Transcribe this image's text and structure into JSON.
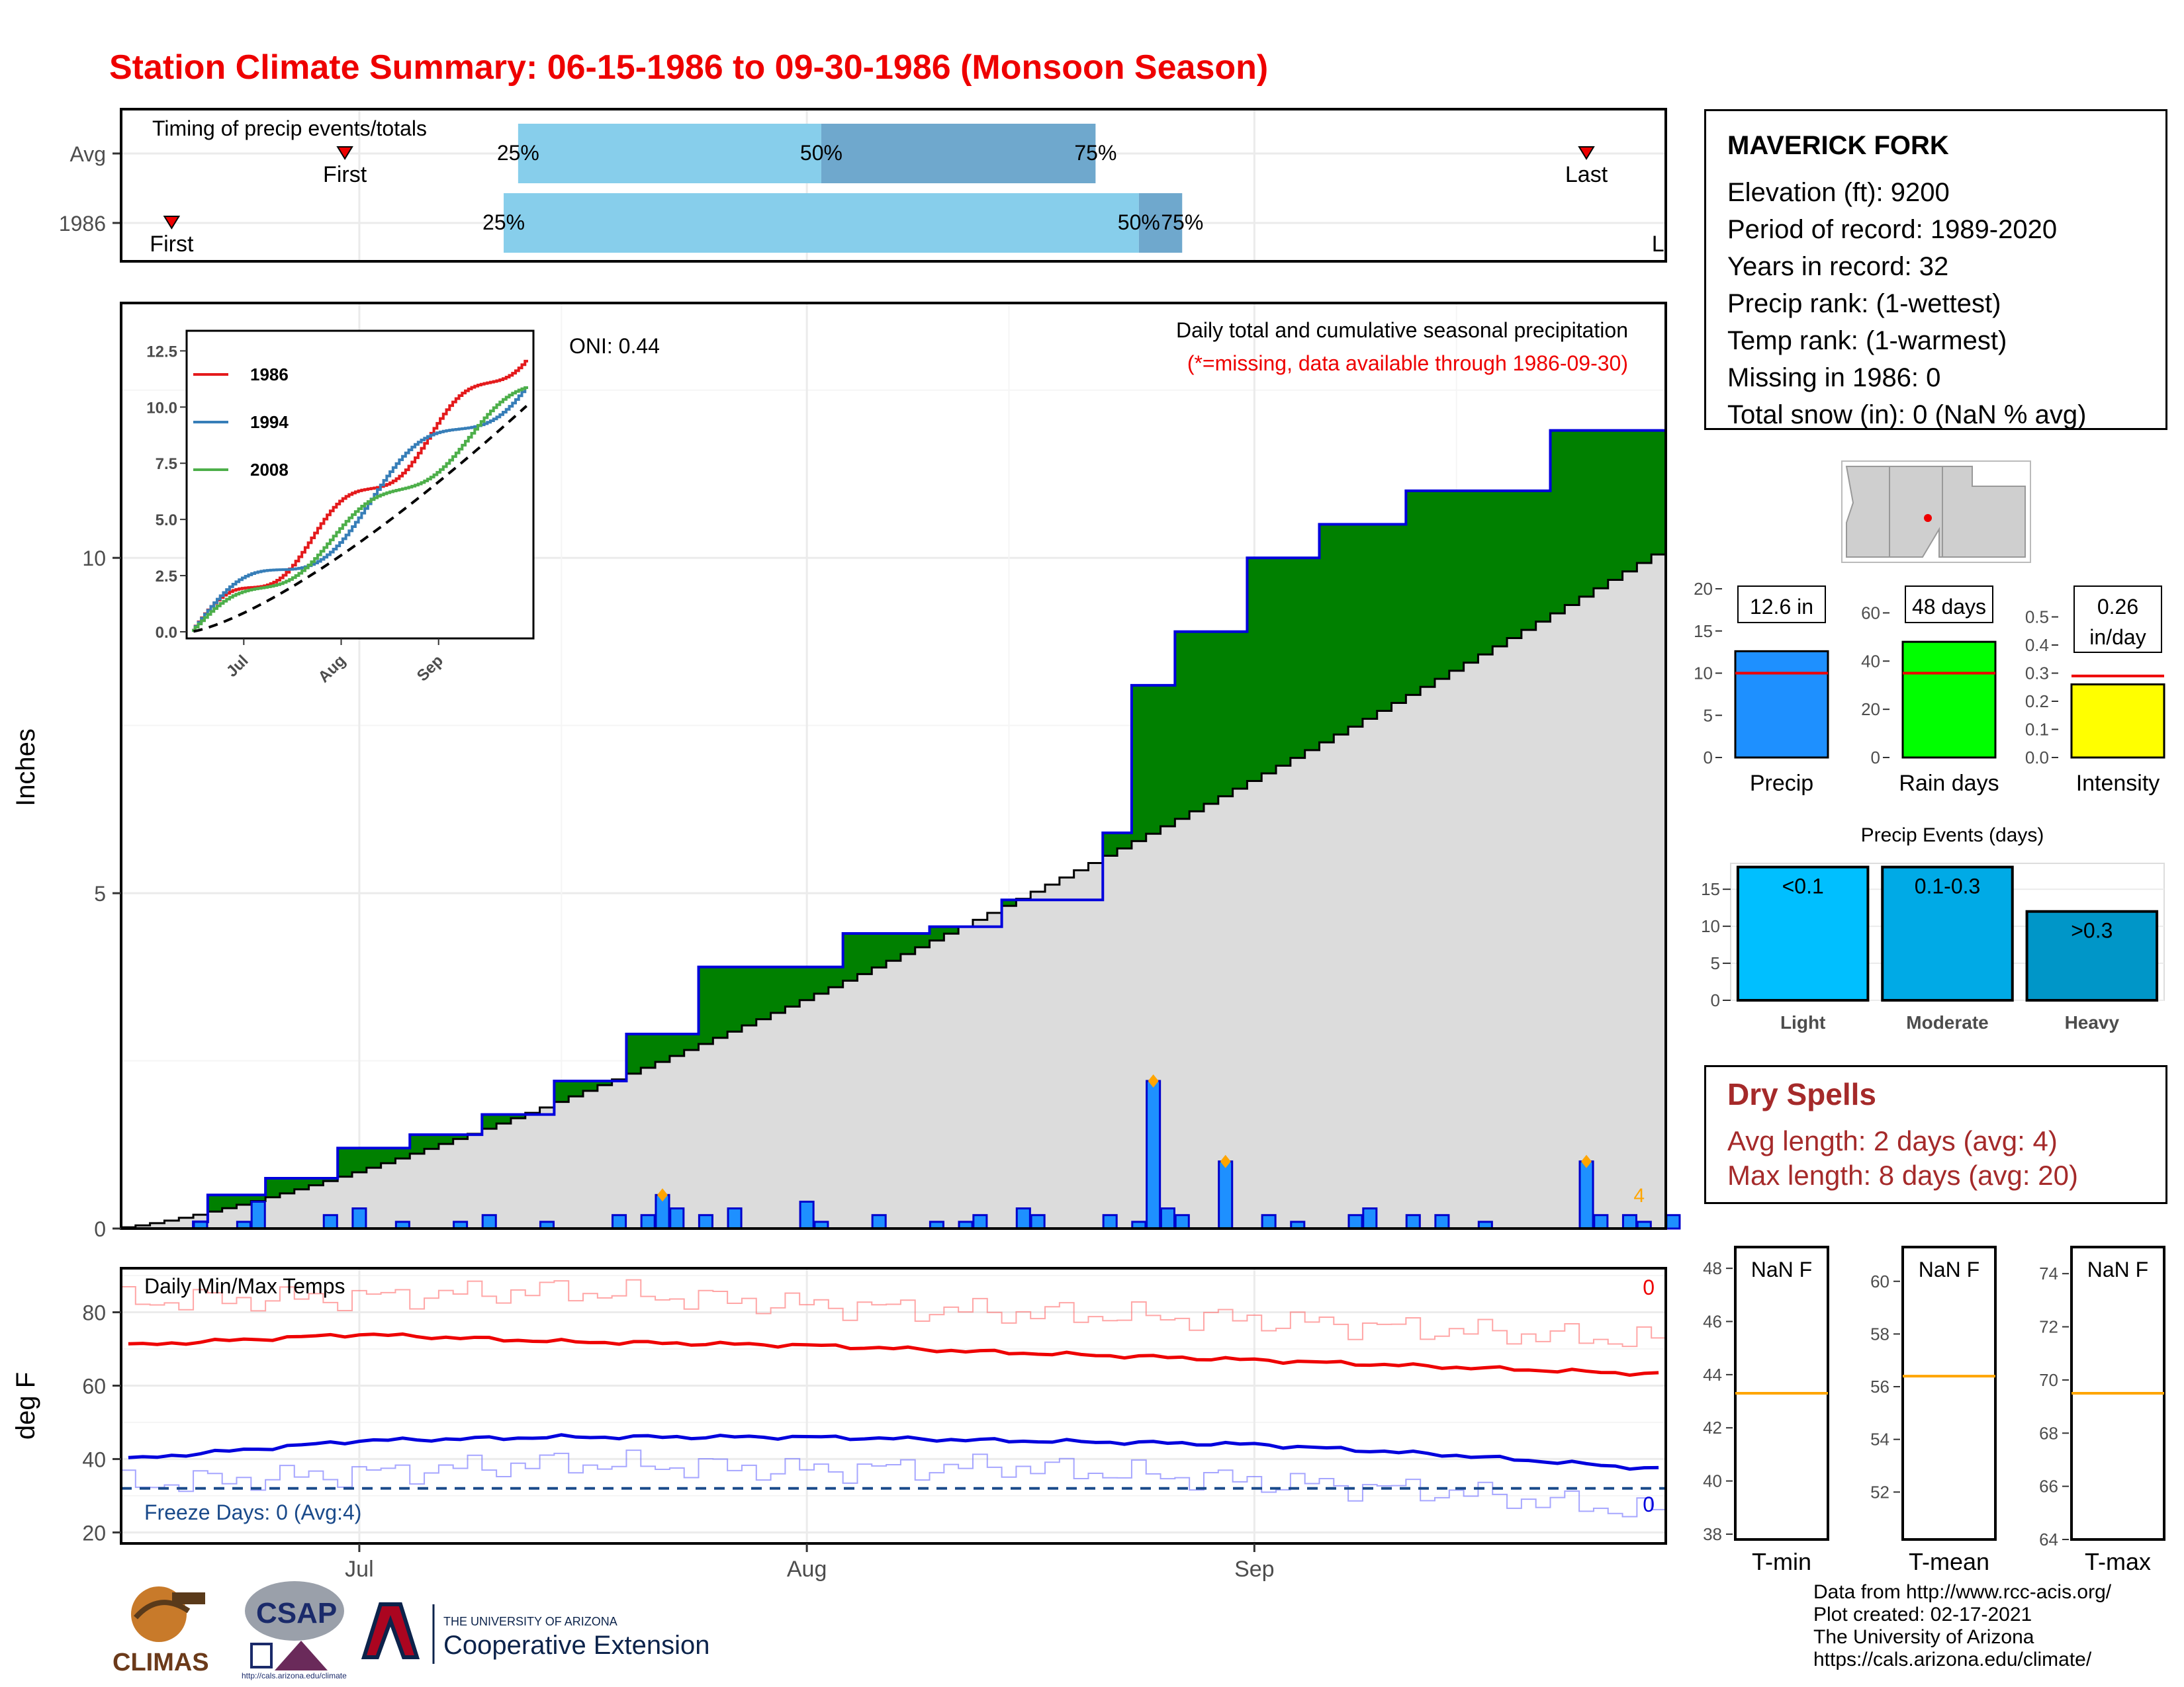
{
  "title": "Station Climate Summary: 06-15-1986 to 09-30-1986 (Monsoon Season)",
  "colors": {
    "obs": "#1e90ff",
    "avg_fill": "#dcdcdc",
    "above": "#008000",
    "below": "#8b5a00",
    "max": "#ee0000",
    "min": "#0000dd",
    "title": "#ee0000",
    "dry": "#a52a2a",
    "q_light": "#87ceeb",
    "q_dark": "#6fa8cd"
  },
  "timing": {
    "label": "Timing of precip events/totals",
    "rows": [
      {
        "name": "Avg",
        "first_day": "06-30",
        "last_day": "09-24",
        "first_label": "First",
        "last_label": "Last",
        "q25_day": "07-12",
        "q50_day": "08-02",
        "q75_day": "08-21",
        "q25": "25%",
        "q50": "50%",
        "q75": "75%"
      },
      {
        "name": "1986",
        "first_day": "06-18",
        "last_day": "09-30",
        "first_label": "First",
        "last_label": "Last",
        "q25_day": "07-11",
        "q50_day": "08-24",
        "q75_day": "08-27",
        "q25": "25%",
        "q50": "50%",
        "q75": "75%"
      }
    ]
  },
  "main": {
    "ylabel": "Inches",
    "oni": "ONI: 0.44",
    "legend1": "Daily total and cumulative seasonal precipitation",
    "legend2": "(*=missing, data available through 1986-09-30)",
    "count_label": "4",
    "xticks": [
      "Jul",
      "Aug",
      "Sep"
    ],
    "yticks": [
      0,
      5,
      10
    ]
  },
  "chart_data": [
    {
      "type": "area",
      "title": "Daily total and cumulative seasonal precipitation",
      "ylabel": "Inches",
      "xlim": [
        "1986-06-15",
        "1986-09-30"
      ],
      "ylim": [
        0,
        13.8
      ],
      "cumulative_avg_end": 10.05,
      "cumulative_1986_end": 12.6,
      "cumulative_1986_points": [
        [
          "1986-06-20",
          0.1
        ],
        [
          "1986-06-21",
          0.5
        ],
        [
          "1986-06-25",
          0.75
        ],
        [
          "1986-06-30",
          1.2
        ],
        [
          "1986-07-05",
          1.4
        ],
        [
          "1986-07-10",
          1.7
        ],
        [
          "1986-07-15",
          2.2
        ],
        [
          "1986-07-20",
          2.9
        ],
        [
          "1986-07-25",
          3.9
        ],
        [
          "1986-07-31",
          3.9
        ],
        [
          "1986-08-04",
          4.4
        ],
        [
          "1986-08-10",
          4.5
        ],
        [
          "1986-08-15",
          4.9
        ],
        [
          "1986-08-22",
          5.9
        ],
        [
          "1986-08-24",
          8.1
        ],
        [
          "1986-08-27",
          8.9
        ],
        [
          "1986-09-01",
          10.0
        ],
        [
          "1986-09-06",
          10.5
        ],
        [
          "1986-09-12",
          11.0
        ],
        [
          "1986-09-21",
          11.0
        ],
        [
          "1986-09-22",
          11.9
        ],
        [
          "1986-09-30",
          12.6
        ]
      ],
      "daily_precip": [
        [
          "1986-06-20",
          0.1
        ],
        [
          "1986-06-23",
          0.1
        ],
        [
          "1986-06-24",
          0.4
        ],
        [
          "1986-06-29",
          0.2
        ],
        [
          "1986-07-01",
          0.3
        ],
        [
          "1986-07-04",
          0.1
        ],
        [
          "1986-07-08",
          0.1
        ],
        [
          "1986-07-10",
          0.2
        ],
        [
          "1986-07-14",
          0.1
        ],
        [
          "1986-07-19",
          0.2
        ],
        [
          "1986-07-21",
          0.2
        ],
        [
          "1986-07-22",
          0.5
        ],
        [
          "1986-07-23",
          0.3
        ],
        [
          "1986-07-25",
          0.2
        ],
        [
          "1986-07-27",
          0.3
        ],
        [
          "1986-08-01",
          0.4
        ],
        [
          "1986-08-02",
          0.1
        ],
        [
          "1986-08-06",
          0.2
        ],
        [
          "1986-08-10",
          0.1
        ],
        [
          "1986-08-12",
          0.1
        ],
        [
          "1986-08-13",
          0.2
        ],
        [
          "1986-08-16",
          0.3
        ],
        [
          "1986-08-17",
          0.2
        ],
        [
          "1986-08-22",
          0.2
        ],
        [
          "1986-08-24",
          0.1
        ],
        [
          "1986-08-25",
          2.2
        ],
        [
          "1986-08-26",
          0.3
        ],
        [
          "1986-08-27",
          0.2
        ],
        [
          "1986-08-30",
          1.0
        ],
        [
          "1986-09-02",
          0.2
        ],
        [
          "1986-09-04",
          0.1
        ],
        [
          "1986-09-08",
          0.2
        ],
        [
          "1986-09-09",
          0.3
        ],
        [
          "1986-09-12",
          0.2
        ],
        [
          "1986-09-14",
          0.2
        ],
        [
          "1986-09-17",
          0.1
        ],
        [
          "1986-09-24",
          1.0
        ],
        [
          "1986-09-25",
          0.2
        ],
        [
          "1986-09-27",
          0.2
        ],
        [
          "1986-09-28",
          0.1
        ],
        [
          "1986-09-30",
          0.2
        ]
      ]
    },
    {
      "type": "line",
      "title": "Daily Min/Max Temps",
      "ylabel": "deg F",
      "ylim": [
        17,
        92
      ],
      "freeze_line": 32,
      "series": [
        {
          "name": "max_1986",
          "x": [
            "06-15",
            "07-01",
            "07-15",
            "08-01",
            "08-15",
            "09-01",
            "09-15",
            "09-30"
          ],
          "values": [
            83,
            84,
            86,
            82,
            80,
            78,
            75,
            72
          ]
        },
        {
          "name": "max_avg",
          "x": [
            "06-15",
            "07-01",
            "07-15",
            "08-01",
            "08-15",
            "09-01",
            "09-15",
            "09-30"
          ],
          "values": [
            71,
            74,
            72,
            71,
            69,
            67,
            65,
            63
          ]
        },
        {
          "name": "min_avg",
          "x": [
            "06-15",
            "07-01",
            "07-15",
            "08-01",
            "08-15",
            "09-01",
            "09-15",
            "09-30"
          ],
          "values": [
            40,
            45,
            46,
            46,
            45,
            44,
            41,
            37
          ]
        },
        {
          "name": "min_1986",
          "x": [
            "06-15",
            "07-01",
            "07-15",
            "08-01",
            "08-15",
            "09-01",
            "09-15",
            "09-30"
          ],
          "values": [
            33,
            36,
            39,
            37,
            38,
            34,
            31,
            25
          ]
        }
      ]
    },
    {
      "type": "bar",
      "categories": [
        "Precip"
      ],
      "values": [
        12.6
      ],
      "avg": 10.0,
      "ylim": [
        0,
        20
      ],
      "label": "12.6 in"
    },
    {
      "type": "bar",
      "categories": [
        "Rain days"
      ],
      "values": [
        48
      ],
      "avg": 35,
      "ylim": [
        0,
        70
      ],
      "label": "48 days"
    },
    {
      "type": "bar",
      "categories": [
        "Intensity"
      ],
      "values": [
        0.26
      ],
      "avg": 0.29,
      "ylim": [
        0,
        0.6
      ],
      "label": "0.26 in/day"
    },
    {
      "type": "bar",
      "title": "Precip Events (days)",
      "categories": [
        "Light",
        "Moderate",
        "Heavy"
      ],
      "values": [
        18,
        18,
        12
      ],
      "labels": [
        "<0.1",
        "0.1-0.3",
        ">0.3"
      ],
      "ylim": [
        0,
        18.5
      ]
    }
  ],
  "temps": {
    "label": "Daily Min/Max Temps",
    "ylabel": "deg F",
    "max_count": "0",
    "min_count": "0",
    "freeze": "Freeze Days: 0 (Avg:4)",
    "yticks": [
      20,
      40,
      60,
      80
    ]
  },
  "station": {
    "name": "MAVERICK FORK",
    "rows": [
      "Elevation (ft): 9200",
      "Period of record: 1989-2020",
      "Years in record: 32",
      "Precip rank:  (1-wettest)",
      "Temp rank:  (1-warmest)",
      "Missing in 1986: 0",
      "Total snow (in): 0 (NaN % avg)"
    ]
  },
  "inset": {
    "years": [
      {
        "label": "1986",
        "color": "#e41a1c"
      },
      {
        "label": "1994",
        "color": "#377eb8"
      },
      {
        "label": "2008",
        "color": "#4daf4a"
      }
    ],
    "yticks": [
      "0.0",
      "2.5",
      "5.0",
      "7.5",
      "10.0",
      "12.5"
    ],
    "xticks": [
      "Jul",
      "Aug",
      "Sep"
    ]
  },
  "mini_bars": [
    {
      "label": "12.6 in",
      "xlabel": "Precip",
      "color": "#1e90ff",
      "yticks": [
        "0",
        "5",
        "10",
        "15",
        "20"
      ]
    },
    {
      "label": "48 days",
      "xlabel": "Rain days",
      "color": "#00ff00",
      "yticks": [
        "0",
        "20",
        "40",
        "60"
      ]
    },
    {
      "label": "0.26",
      "label2": "in/day",
      "xlabel": "Intensity",
      "color": "#ffff00",
      "yticks": [
        "0.0",
        "0.1",
        "0.2",
        "0.3",
        "0.4",
        "0.5"
      ]
    }
  ],
  "events": {
    "title": "Precip Events (days)",
    "yticks": [
      "0",
      "5",
      "10",
      "15"
    ],
    "colors": [
      "#00bfff",
      "#00aae6",
      "#0096c8"
    ]
  },
  "dry": {
    "title": "Dry Spells",
    "avg": "Avg length: 2 days (avg: 4)",
    "max": "Max length: 8 days (avg: 20)"
  },
  "temp_boxes": [
    {
      "label": "NaN F",
      "xlabel": "T-min",
      "yticks": [
        "38",
        "40",
        "42",
        "44",
        "46",
        "48"
      ],
      "line": 43.3,
      "range": [
        37.8,
        48.8
      ]
    },
    {
      "label": "NaN F",
      "xlabel": "T-mean",
      "yticks": [
        "52",
        "54",
        "56",
        "58",
        "60"
      ],
      "line": 56.4,
      "range": [
        50.2,
        61.3
      ]
    },
    {
      "label": "NaN F",
      "xlabel": "T-max",
      "yticks": [
        "64",
        "66",
        "68",
        "70",
        "72",
        "74"
      ],
      "line": 69.5,
      "range": [
        64.0,
        75.0
      ]
    }
  ],
  "credits": [
    "Data from http://www.rcc-acis.org/",
    "Plot created: 02-17-2021",
    "The University of Arizona",
    "https://cals.arizona.edu/climate/"
  ],
  "logos": {
    "climas": "CLIMAS",
    "csap": "CSAP",
    "csap_url": "http://cals.arizona.edu/climate",
    "ua_small": "THE UNIVERSITY OF ARIZONA",
    "ua_big": "Cooperative Extension"
  }
}
